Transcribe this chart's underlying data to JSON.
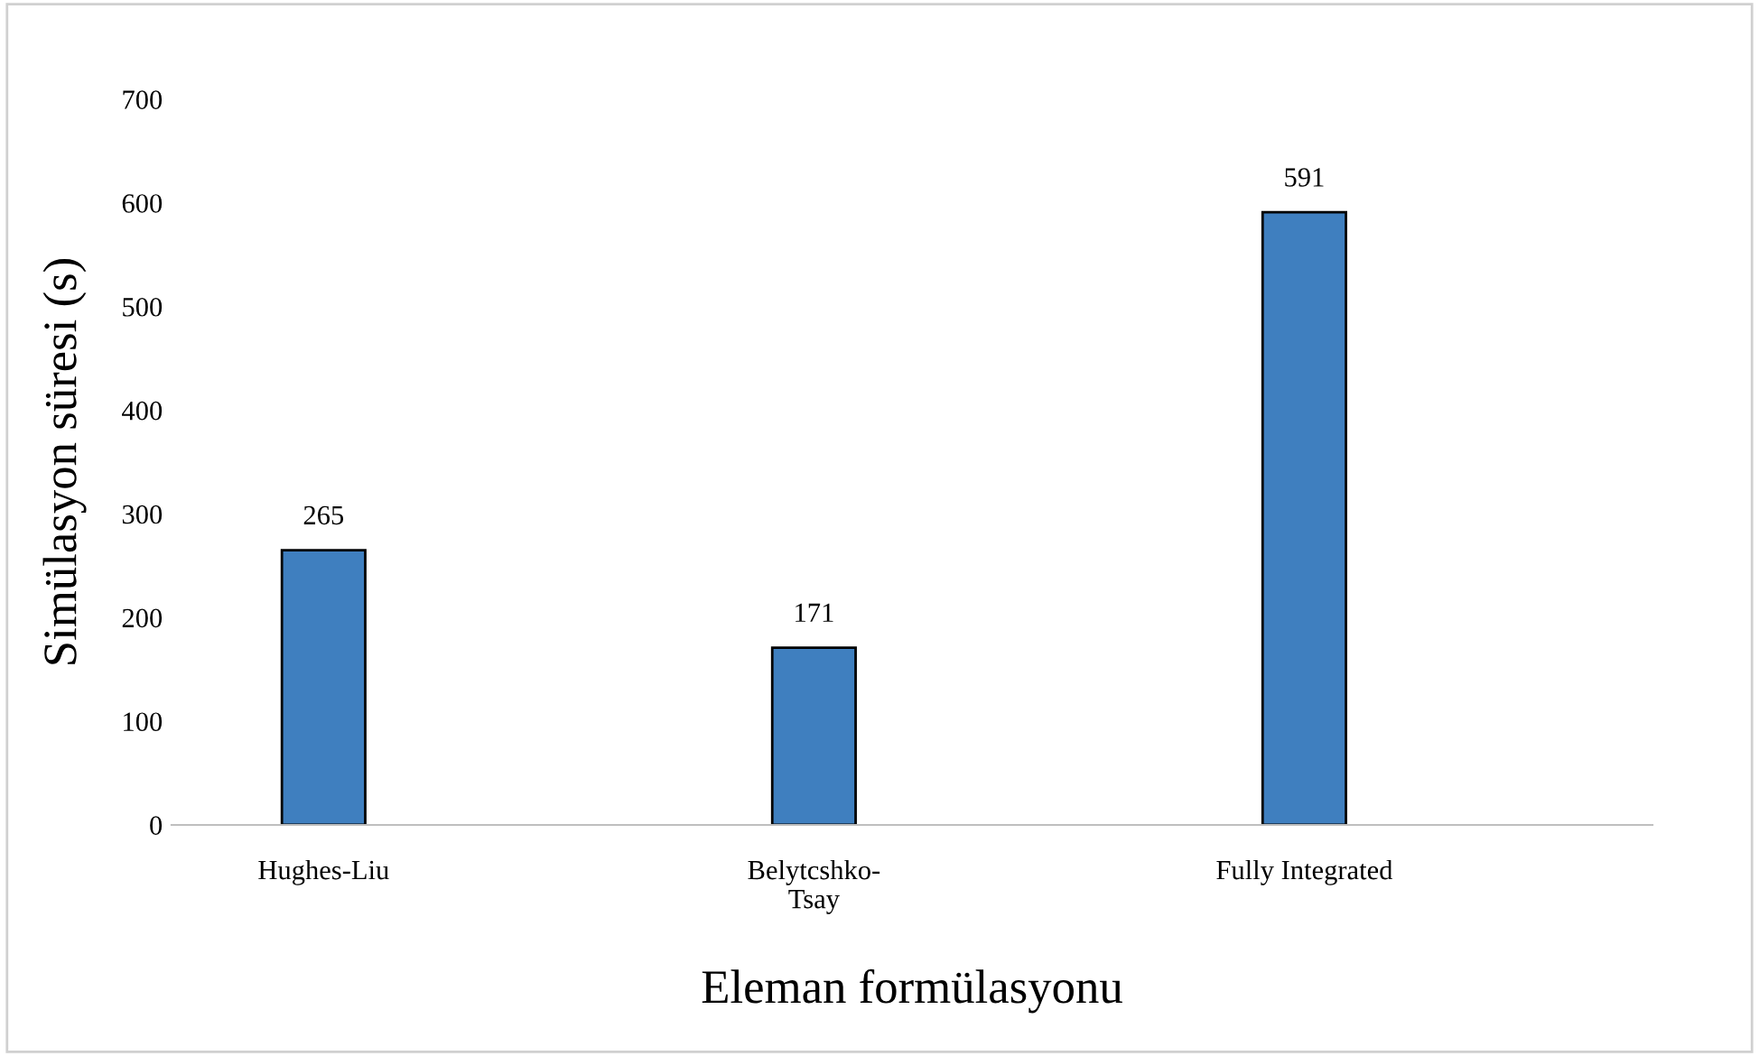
{
  "chart_data": {
    "type": "bar",
    "xlabel": "Eleman formülasyonu",
    "ylabel": "Simülasyon süresi (s)",
    "categories": [
      "Hughes-Liu",
      "Belytcshko-Tsay",
      "Fully Integrated"
    ],
    "values": [
      265,
      171,
      591
    ],
    "color": "#3f7fbf",
    "ylim": [
      0,
      700
    ],
    "yticks": [
      0,
      100,
      200,
      300,
      400,
      500,
      600,
      700
    ],
    "data_labels": true,
    "grid": false
  }
}
